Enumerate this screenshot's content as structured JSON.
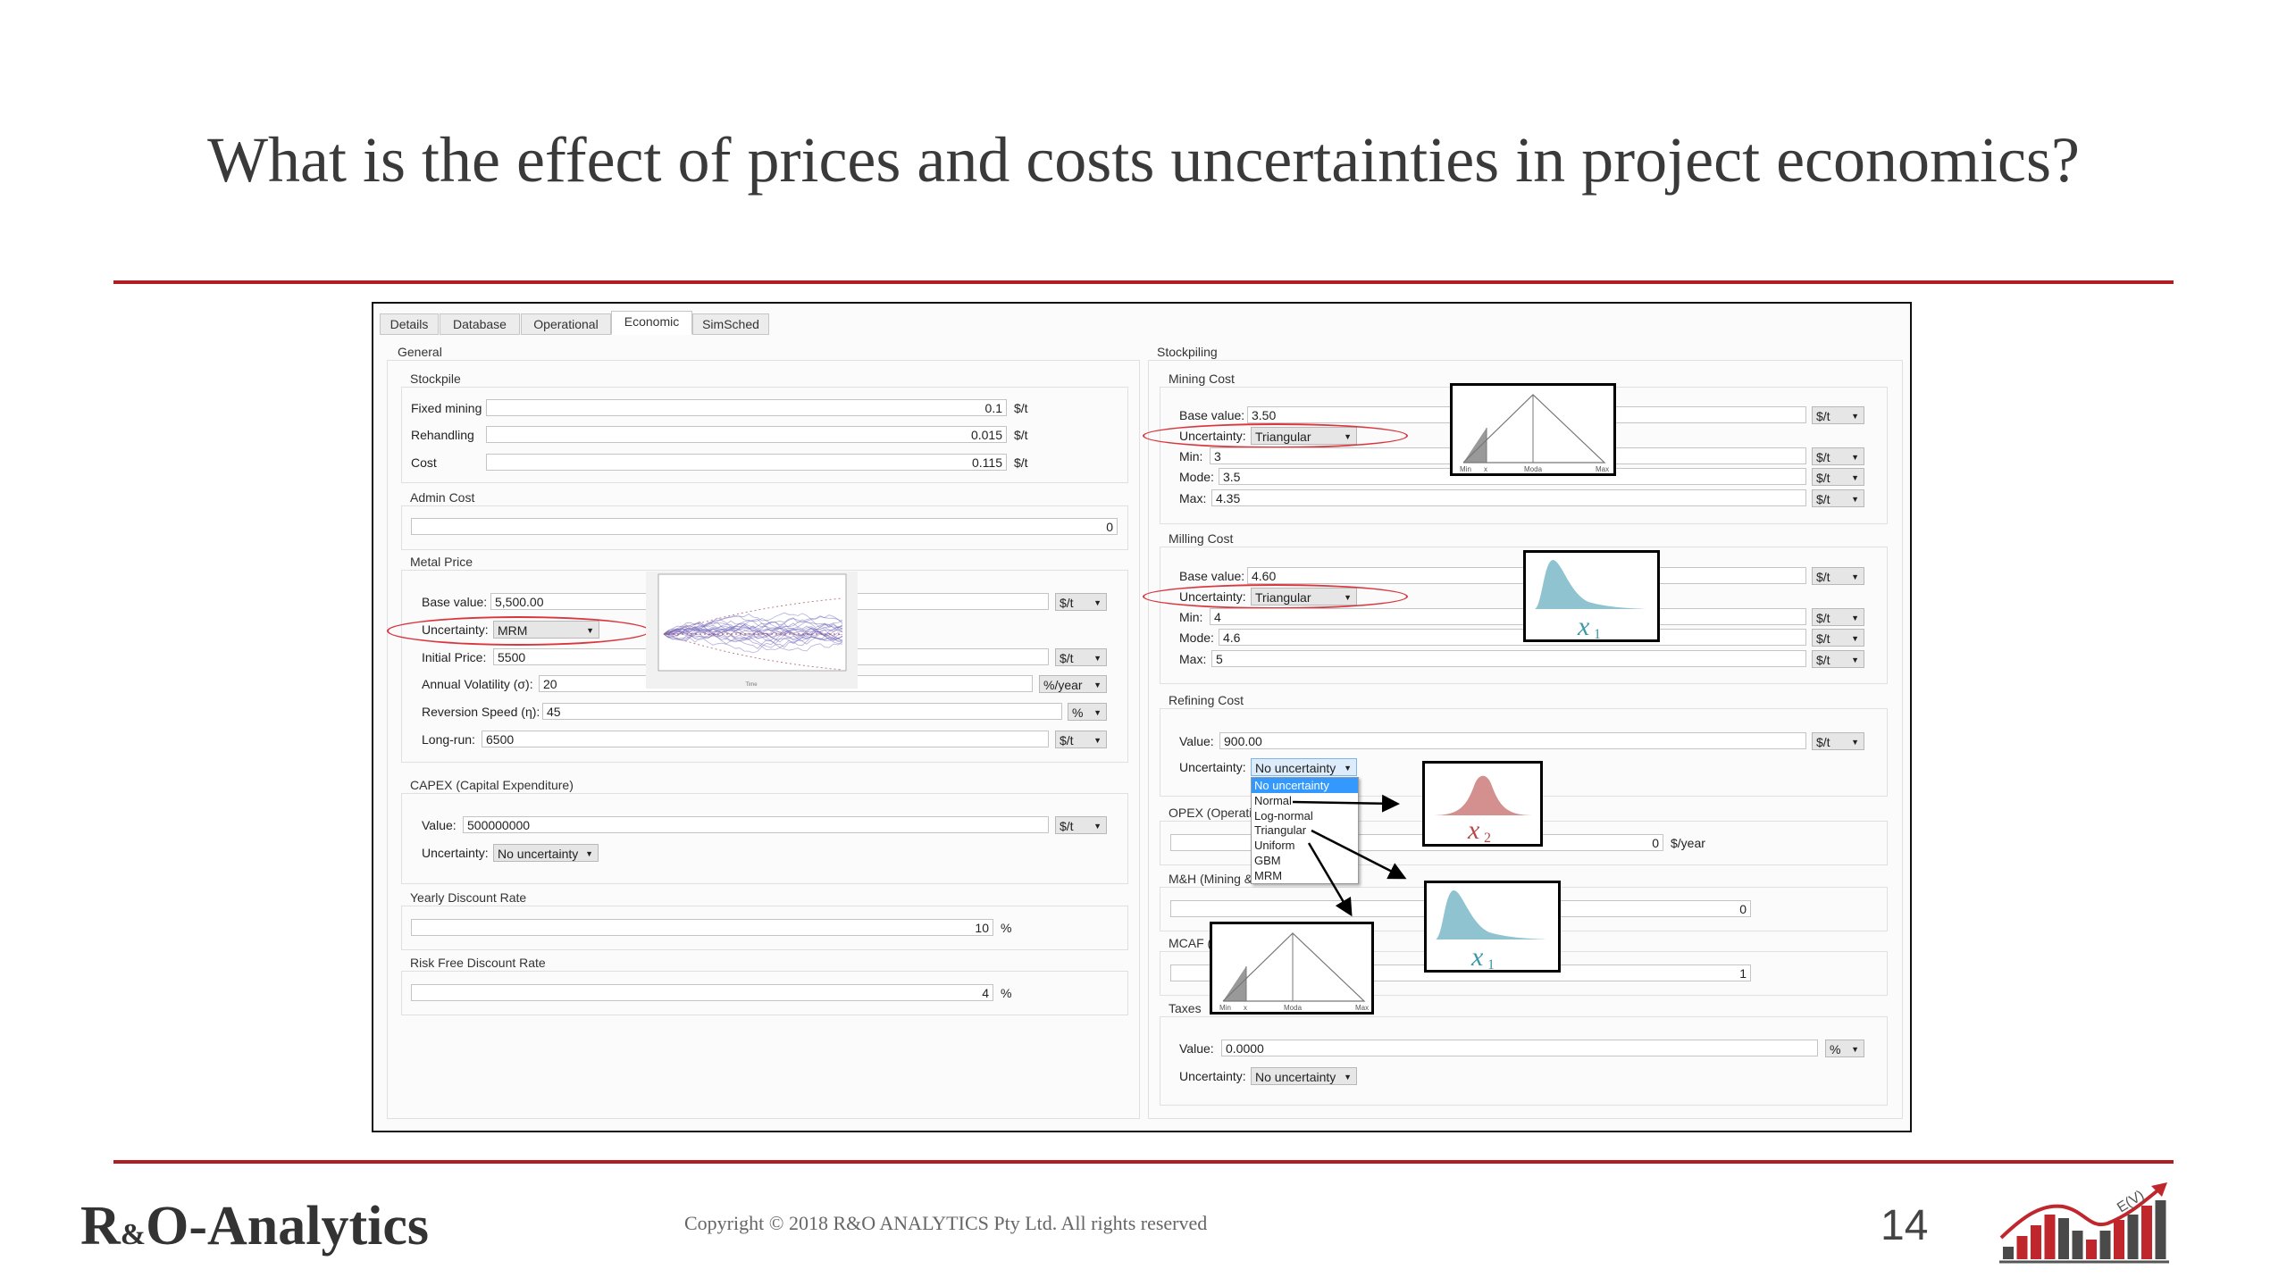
{
  "slide": {
    "title": "What is the effect of prices and costs uncertainties in project economics?",
    "brand_main": "R",
    "brand_amp": "&",
    "brand_rest": "O-Analytics",
    "copyright": "Copyright © 2018 R&O ANALYTICS Pty Ltd. All rights reserved",
    "page_number": "14",
    "logo_text": "E(V)",
    "accent_color": "#b01e23"
  },
  "tabs": [
    "Details",
    "Database",
    "Operational",
    "Economic",
    "SimSched"
  ],
  "active_tab": "Economic",
  "left": {
    "general_label": "General",
    "stockpile": {
      "label": "Stockpile",
      "rows": [
        {
          "label": "Fixed mining",
          "value": "0.1",
          "unit": "$/t"
        },
        {
          "label": "Rehandling",
          "value": "0.015",
          "unit": "$/t"
        },
        {
          "label": "Cost",
          "value": "0.115",
          "unit": "$/t"
        }
      ]
    },
    "admin_cost": {
      "label": "Admin Cost",
      "value": "0"
    },
    "metal_price": {
      "label": "Metal Price",
      "base_label": "Base value:",
      "base_value": "5,500.00",
      "base_unit": "$/t",
      "uncertainty_label": "Uncertainty:",
      "uncertainty_value": "MRM",
      "initial_label": "Initial Price:",
      "initial_value": "5500",
      "initial_unit": "$/t",
      "volatility_label": "Annual Volatility (σ):",
      "volatility_value": "20",
      "volatility_unit": "%/year",
      "reversion_label": "Reversion Speed (η):",
      "reversion_value": "45",
      "reversion_unit": "%",
      "longrun_label": "Long-run:",
      "longrun_value": "6500",
      "longrun_unit": "$/t",
      "chart_xlabel": "Time"
    },
    "capex": {
      "label": "CAPEX (Capital Expenditure)",
      "value_label": "Value:",
      "value": "500000000",
      "unit": "$/t",
      "uncertainty_label": "Uncertainty:",
      "uncertainty_value": "No uncertainty"
    },
    "yearly_discount": {
      "label": "Yearly Discount Rate",
      "value": "10",
      "unit": "%"
    },
    "risk_free": {
      "label": "Risk Free Discount Rate",
      "value": "4",
      "unit": "%"
    }
  },
  "right": {
    "stockpiling_label": "Stockpiling",
    "mining_cost": {
      "label": "Mining Cost",
      "base_label": "Base value:",
      "base_value": "3.50",
      "uncertainty_label": "Uncertainty:",
      "uncertainty_value": "Triangular",
      "min_label": "Min:",
      "min_value": "3",
      "mode_label": "Mode:",
      "mode_value": "3.5",
      "max_label": "Max:",
      "max_value": "4.35",
      "unit": "$/t"
    },
    "milling_cost": {
      "label": "Milling Cost",
      "base_label": "Base value:",
      "base_value": "4.60",
      "uncertainty_label": "Uncertainty:",
      "uncertainty_value": "Triangular",
      "min_label": "Min:",
      "min_value": "4",
      "mode_label": "Mode:",
      "mode_value": "4.6",
      "max_label": "Max:",
      "max_value": "5",
      "unit": "$/t"
    },
    "refining_cost": {
      "label": "Refining Cost",
      "value_label": "Value:",
      "value": "900.00",
      "unit": "$/t",
      "uncertainty_label": "Uncertainty:",
      "uncertainty_value": "No uncertainty",
      "dropdown_options": [
        "No uncertainty",
        "Normal",
        "Log-normal",
        "Triangular",
        "Uniform",
        "GBM",
        "MRM"
      ],
      "dropdown_selected": "No uncertainty"
    },
    "opex": {
      "label": "OPEX (Operatin",
      "value": "0",
      "unit": "$/year"
    },
    "mh": {
      "label": "M&H (Mining &",
      "value": "0"
    },
    "mcaf": {
      "label": "MCAF (",
      "value": "1"
    },
    "taxes": {
      "label": "Taxes",
      "value_label": "Value:",
      "value": "0.0000",
      "unit": "%",
      "uncertainty_label": "Uncertainty:",
      "uncertainty_value": "No uncertainty"
    }
  },
  "figures": {
    "triangular": {
      "min": "Min",
      "x": "x",
      "mode": "Moda",
      "max": "Max"
    },
    "lognormal_label": "x",
    "lognormal_sub": "1",
    "normal_label": "x",
    "normal_sub": "2",
    "normal_color": "#d4908f",
    "lognormal_color": "#8ec3cf"
  }
}
